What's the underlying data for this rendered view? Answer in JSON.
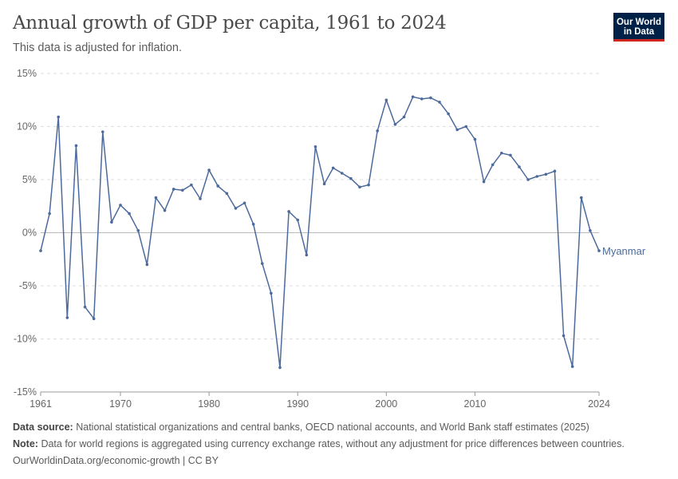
{
  "header": {
    "title": "Annual growth of GDP per capita, 1961 to 2024",
    "subtitle": "This data is adjusted for inflation.",
    "logo_line1": "Our World",
    "logo_line2": "in Data"
  },
  "footer": {
    "source_label": "Data source:",
    "source_text": "National statistical organizations and central banks, OECD national accounts, and World Bank staff estimates (2025)",
    "note_label": "Note:",
    "note_text": "Data for world regions is aggregated using currency exchange rates, without any adjustment for price differences between countries.",
    "credit": "OurWorldinData.org/economic-growth | CC BY"
  },
  "colors": {
    "series": "#4c6a9c",
    "grid": "#dddddd",
    "zero": "#bbbbbb",
    "logo_bg": "#002147",
    "logo_accent": "#ce261e"
  },
  "chart_data": {
    "type": "line",
    "title": "Annual growth of GDP per capita, 1961 to 2024",
    "ylim": [
      -15,
      15
    ],
    "xlim": [
      1961,
      2024
    ],
    "y_ticks": [
      15,
      10,
      5,
      0,
      -5,
      -10,
      -15
    ],
    "y_tick_labels": [
      "15%",
      "10%",
      "5%",
      "0%",
      "-5%",
      "-10%",
      "-15%"
    ],
    "x_ticks": [
      1961,
      1970,
      1980,
      1990,
      2000,
      2010,
      2024
    ],
    "x_tick_labels": [
      "1961",
      "1970",
      "1980",
      "1990",
      "2000",
      "2010",
      "2024"
    ],
    "grid": "horizontal dashed",
    "series": [
      {
        "name": "Myanmar",
        "x": [
          1961,
          1962,
          1963,
          1964,
          1965,
          1966,
          1967,
          1968,
          1969,
          1970,
          1971,
          1972,
          1973,
          1974,
          1975,
          1976,
          1977,
          1978,
          1979,
          1980,
          1981,
          1982,
          1983,
          1984,
          1985,
          1986,
          1987,
          1988,
          1989,
          1990,
          1991,
          1992,
          1993,
          1994,
          1995,
          1996,
          1997,
          1998,
          1999,
          2000,
          2001,
          2002,
          2003,
          2004,
          2005,
          2006,
          2007,
          2008,
          2009,
          2010,
          2011,
          2012,
          2013,
          2014,
          2015,
          2016,
          2017,
          2018,
          2019,
          2020,
          2021,
          2022,
          2023,
          2024
        ],
        "values": [
          -1.7,
          1.8,
          10.9,
          -8.0,
          8.2,
          -7.0,
          -8.1,
          9.5,
          1.0,
          2.6,
          1.8,
          0.2,
          -3.0,
          3.3,
          2.1,
          4.1,
          4.0,
          4.5,
          3.2,
          5.9,
          4.4,
          3.7,
          2.3,
          2.8,
          0.8,
          -2.9,
          -5.7,
          -12.7,
          2.0,
          1.2,
          -2.1,
          8.1,
          4.6,
          6.1,
          5.6,
          5.1,
          4.3,
          4.5,
          9.6,
          12.5,
          10.2,
          10.9,
          12.8,
          12.6,
          12.7,
          12.3,
          11.2,
          9.7,
          10.0,
          8.8,
          4.8,
          6.4,
          7.5,
          7.3,
          6.2,
          5.0,
          5.3,
          5.5,
          5.8,
          -9.7,
          -12.6,
          3.3,
          0.2,
          -1.7
        ]
      }
    ]
  }
}
